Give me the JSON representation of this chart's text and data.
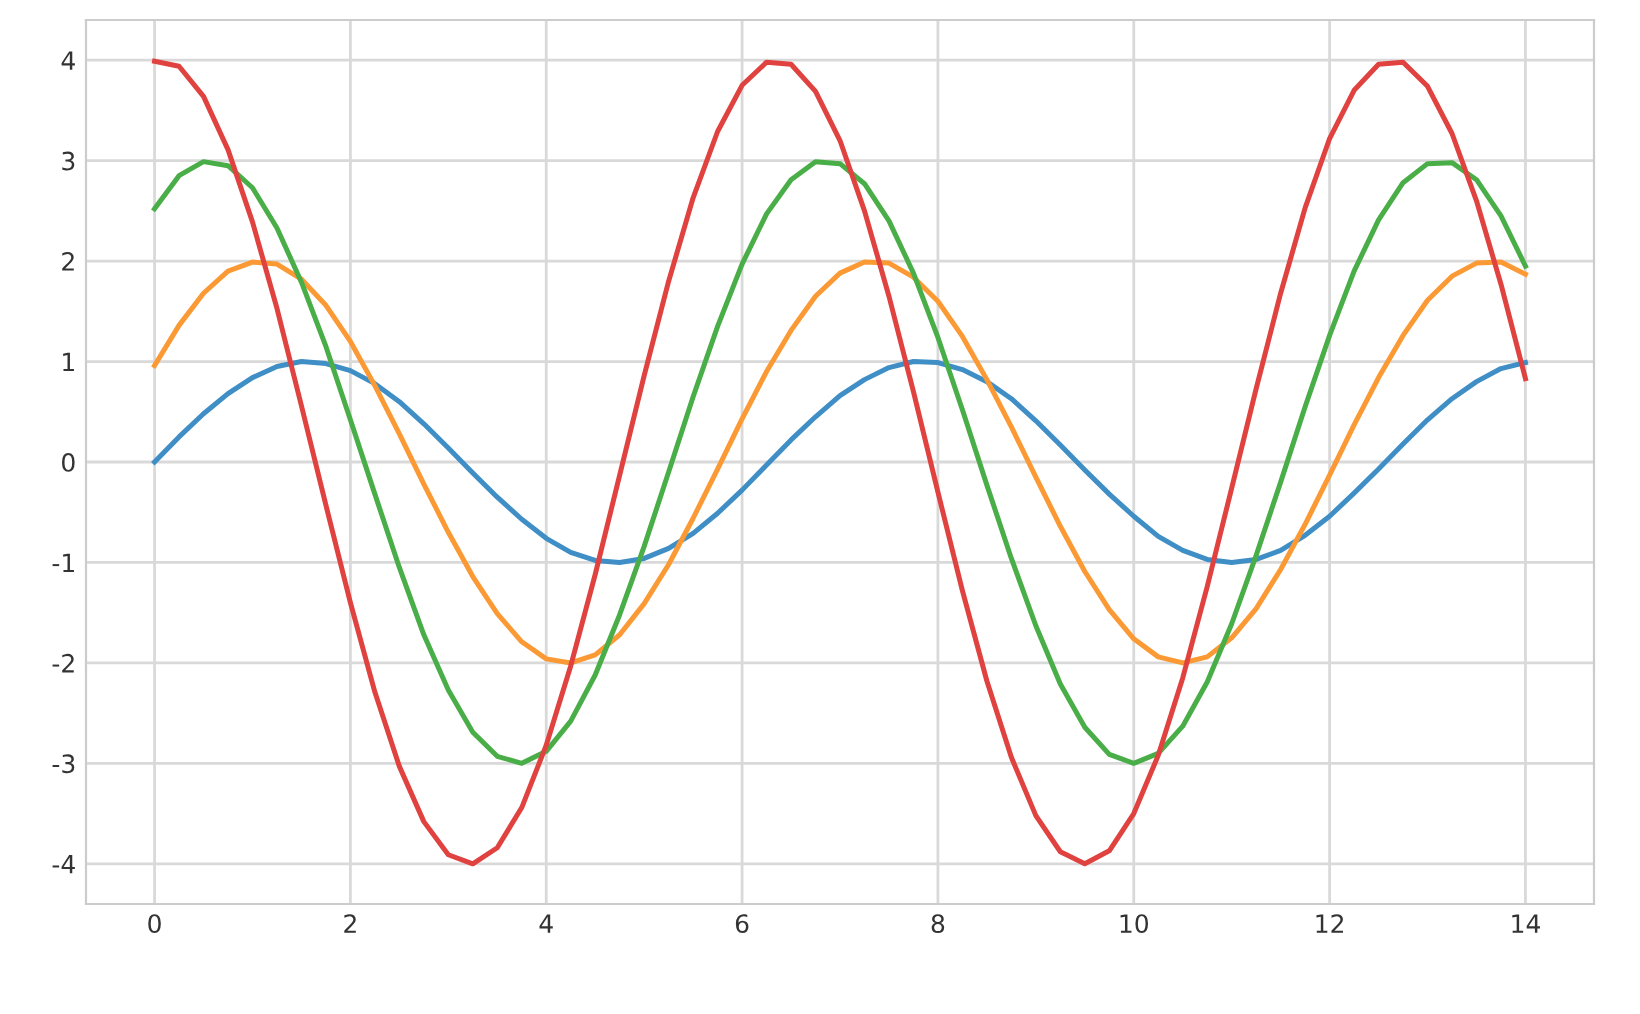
{
  "chart_data": {
    "type": "line",
    "x": [
      0,
      0.25,
      0.5,
      0.75,
      1,
      1.25,
      1.5,
      1.75,
      2,
      2.25,
      2.5,
      2.75,
      3,
      3.25,
      3.5,
      3.75,
      4,
      4.25,
      4.5,
      4.75,
      5,
      5.25,
      5.5,
      5.75,
      6,
      6.25,
      6.5,
      6.75,
      7,
      7.25,
      7.5,
      7.75,
      8,
      8.25,
      8.5,
      8.75,
      9,
      9.25,
      9.5,
      9.75,
      10,
      10.25,
      10.5,
      10.75,
      11,
      11.25,
      11.5,
      11.75,
      12,
      12.25,
      12.5,
      12.75,
      13,
      13.25,
      13.5,
      13.75,
      14
    ],
    "series": [
      {
        "color": "#3f8fc6",
        "values": [
          0,
          0.25,
          0.48,
          0.68,
          0.84,
          0.95,
          1.0,
          0.98,
          0.91,
          0.78,
          0.6,
          0.38,
          0.14,
          -0.11,
          -0.35,
          -0.57,
          -0.76,
          -0.9,
          -0.98,
          -1.0,
          -0.96,
          -0.86,
          -0.71,
          -0.51,
          -0.28,
          -0.03,
          0.22,
          0.45,
          0.66,
          0.82,
          0.94,
          1.0,
          0.99,
          0.92,
          0.8,
          0.63,
          0.41,
          0.17,
          -0.08,
          -0.32,
          -0.54,
          -0.74,
          -0.88,
          -0.97,
          -1.0,
          -0.97,
          -0.88,
          -0.73,
          -0.54,
          -0.31,
          -0.07,
          0.18,
          0.42,
          0.63,
          0.8,
          0.93,
          0.99
        ]
      },
      {
        "color": "#fb9a35",
        "values": [
          0.96,
          1.36,
          1.68,
          1.9,
          1.99,
          1.97,
          1.82,
          1.56,
          1.2,
          0.76,
          0.28,
          -0.22,
          -0.7,
          -1.14,
          -1.51,
          -1.79,
          -1.96,
          -2.0,
          -1.92,
          -1.72,
          -1.41,
          -1.02,
          -0.56,
          -0.07,
          0.43,
          0.9,
          1.31,
          1.65,
          1.88,
          1.99,
          1.98,
          1.84,
          1.6,
          1.25,
          0.82,
          0.35,
          -0.15,
          -0.64,
          -1.09,
          -1.47,
          -1.76,
          -1.94,
          -2.0,
          -1.94,
          -1.75,
          -1.46,
          -1.07,
          -0.62,
          -0.13,
          0.37,
          0.84,
          1.26,
          1.61,
          1.85,
          1.98,
          1.99,
          1.87
        ]
      },
      {
        "color": "#4aae48",
        "values": [
          2.52,
          2.85,
          2.99,
          2.95,
          2.73,
          2.33,
          1.79,
          1.15,
          0.42,
          -0.32,
          -1.05,
          -1.72,
          -2.27,
          -2.69,
          -2.93,
          -3.0,
          -2.88,
          -2.58,
          -2.12,
          -1.52,
          -0.84,
          -0.1,
          0.65,
          1.35,
          1.97,
          2.47,
          2.81,
          2.99,
          2.97,
          2.77,
          2.4,
          1.88,
          1.24,
          0.52,
          -0.23,
          -0.96,
          -1.63,
          -2.21,
          -2.64,
          -2.91,
          -3.0,
          -2.9,
          -2.63,
          -2.19,
          -1.61,
          -0.93,
          -0.2,
          0.55,
          1.26,
          1.9,
          2.41,
          2.78,
          2.97,
          2.98,
          2.81,
          2.45,
          1.95
        ]
      },
      {
        "color": "#e0423f",
        "values": [
          3.99,
          3.94,
          3.64,
          3.11,
          2.39,
          1.53,
          0.56,
          -0.43,
          -1.4,
          -2.29,
          -3.03,
          -3.58,
          -3.91,
          -4.0,
          -3.84,
          -3.44,
          -2.82,
          -2.03,
          -1.12,
          -0.13,
          0.86,
          1.8,
          2.63,
          3.29,
          3.75,
          3.98,
          3.96,
          3.69,
          3.2,
          2.5,
          1.65,
          0.7,
          -0.3,
          -1.28,
          -2.18,
          -2.94,
          -3.52,
          -3.88,
          -4.0,
          -3.87,
          -3.5,
          -2.92,
          -2.15,
          -1.24,
          -0.26,
          0.73,
          1.68,
          2.53,
          3.22,
          3.7,
          3.96,
          3.98,
          3.74,
          3.27,
          2.6,
          1.77,
          0.83
        ]
      }
    ],
    "xlim": [
      -0.7,
      14.7
    ],
    "ylim": [
      -4.4,
      4.4
    ],
    "xticks": [
      0,
      2,
      4,
      6,
      8,
      10,
      12,
      14
    ],
    "yticks": [
      -4,
      -3,
      -2,
      -1,
      0,
      1,
      2,
      3,
      4
    ],
    "grid": true,
    "legend": false
  }
}
